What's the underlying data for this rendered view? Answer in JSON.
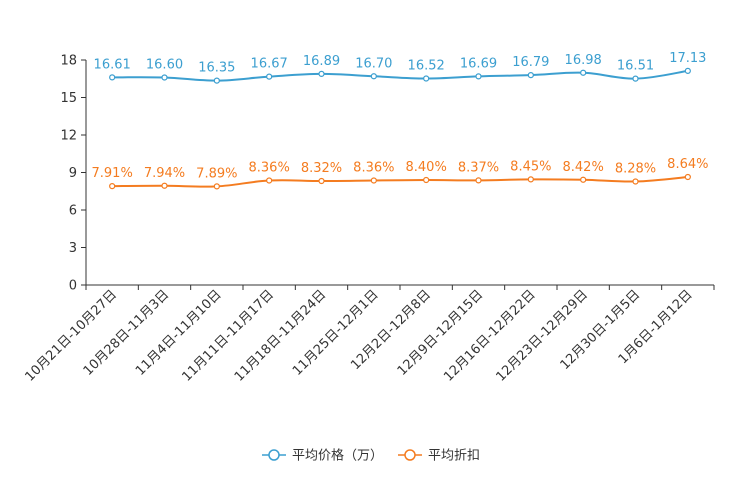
{
  "chart_data": {
    "type": "line",
    "categories": [
      "10月21日-10月27日",
      "10月28日-11月3日",
      "11月4日-11月10日",
      "11月11日-11月17日",
      "11月18日-11月24日",
      "11月25日-12月1日",
      "12月2日-12月8日",
      "12月9日-12月15日",
      "12月16日-12月22日",
      "12月23日-12月29日",
      "12月30日-1月5日",
      "1月6日-1月12日"
    ],
    "ylim": [
      0,
      18
    ],
    "yticks": [
      0,
      3,
      6,
      9,
      12,
      15,
      18
    ],
    "grid": false,
    "series": [
      {
        "name": "平均价格（万）",
        "color": "#3c9fd0",
        "values": [
          16.61,
          16.6,
          16.35,
          16.67,
          16.89,
          16.7,
          16.52,
          16.69,
          16.79,
          16.98,
          16.51,
          17.13
        ],
        "value_labels": [
          "16.61",
          "16.60",
          "16.35",
          "16.67",
          "16.89",
          "16.70",
          "16.52",
          "16.69",
          "16.79",
          "16.98",
          "16.51",
          "17.13"
        ],
        "plot_values": [
          16.61,
          16.6,
          16.35,
          16.67,
          16.89,
          16.7,
          16.52,
          16.69,
          16.79,
          16.98,
          16.51,
          17.13
        ]
      },
      {
        "name": "平均折扣",
        "color": "#f47c20",
        "values": [
          7.91,
          7.94,
          7.89,
          8.36,
          8.32,
          8.36,
          8.4,
          8.37,
          8.45,
          8.42,
          8.28,
          8.64
        ],
        "value_labels": [
          "7.91%",
          "7.94%",
          "7.89%",
          "8.36%",
          "8.32%",
          "8.36%",
          "8.40%",
          "8.37%",
          "8.45%",
          "8.42%",
          "8.28%",
          "8.64%"
        ],
        "plot_values": [
          7.91,
          7.94,
          7.89,
          8.36,
          8.32,
          8.36,
          8.4,
          8.37,
          8.45,
          8.42,
          8.28,
          8.64
        ]
      }
    ],
    "legend_position": "bottom-center"
  }
}
